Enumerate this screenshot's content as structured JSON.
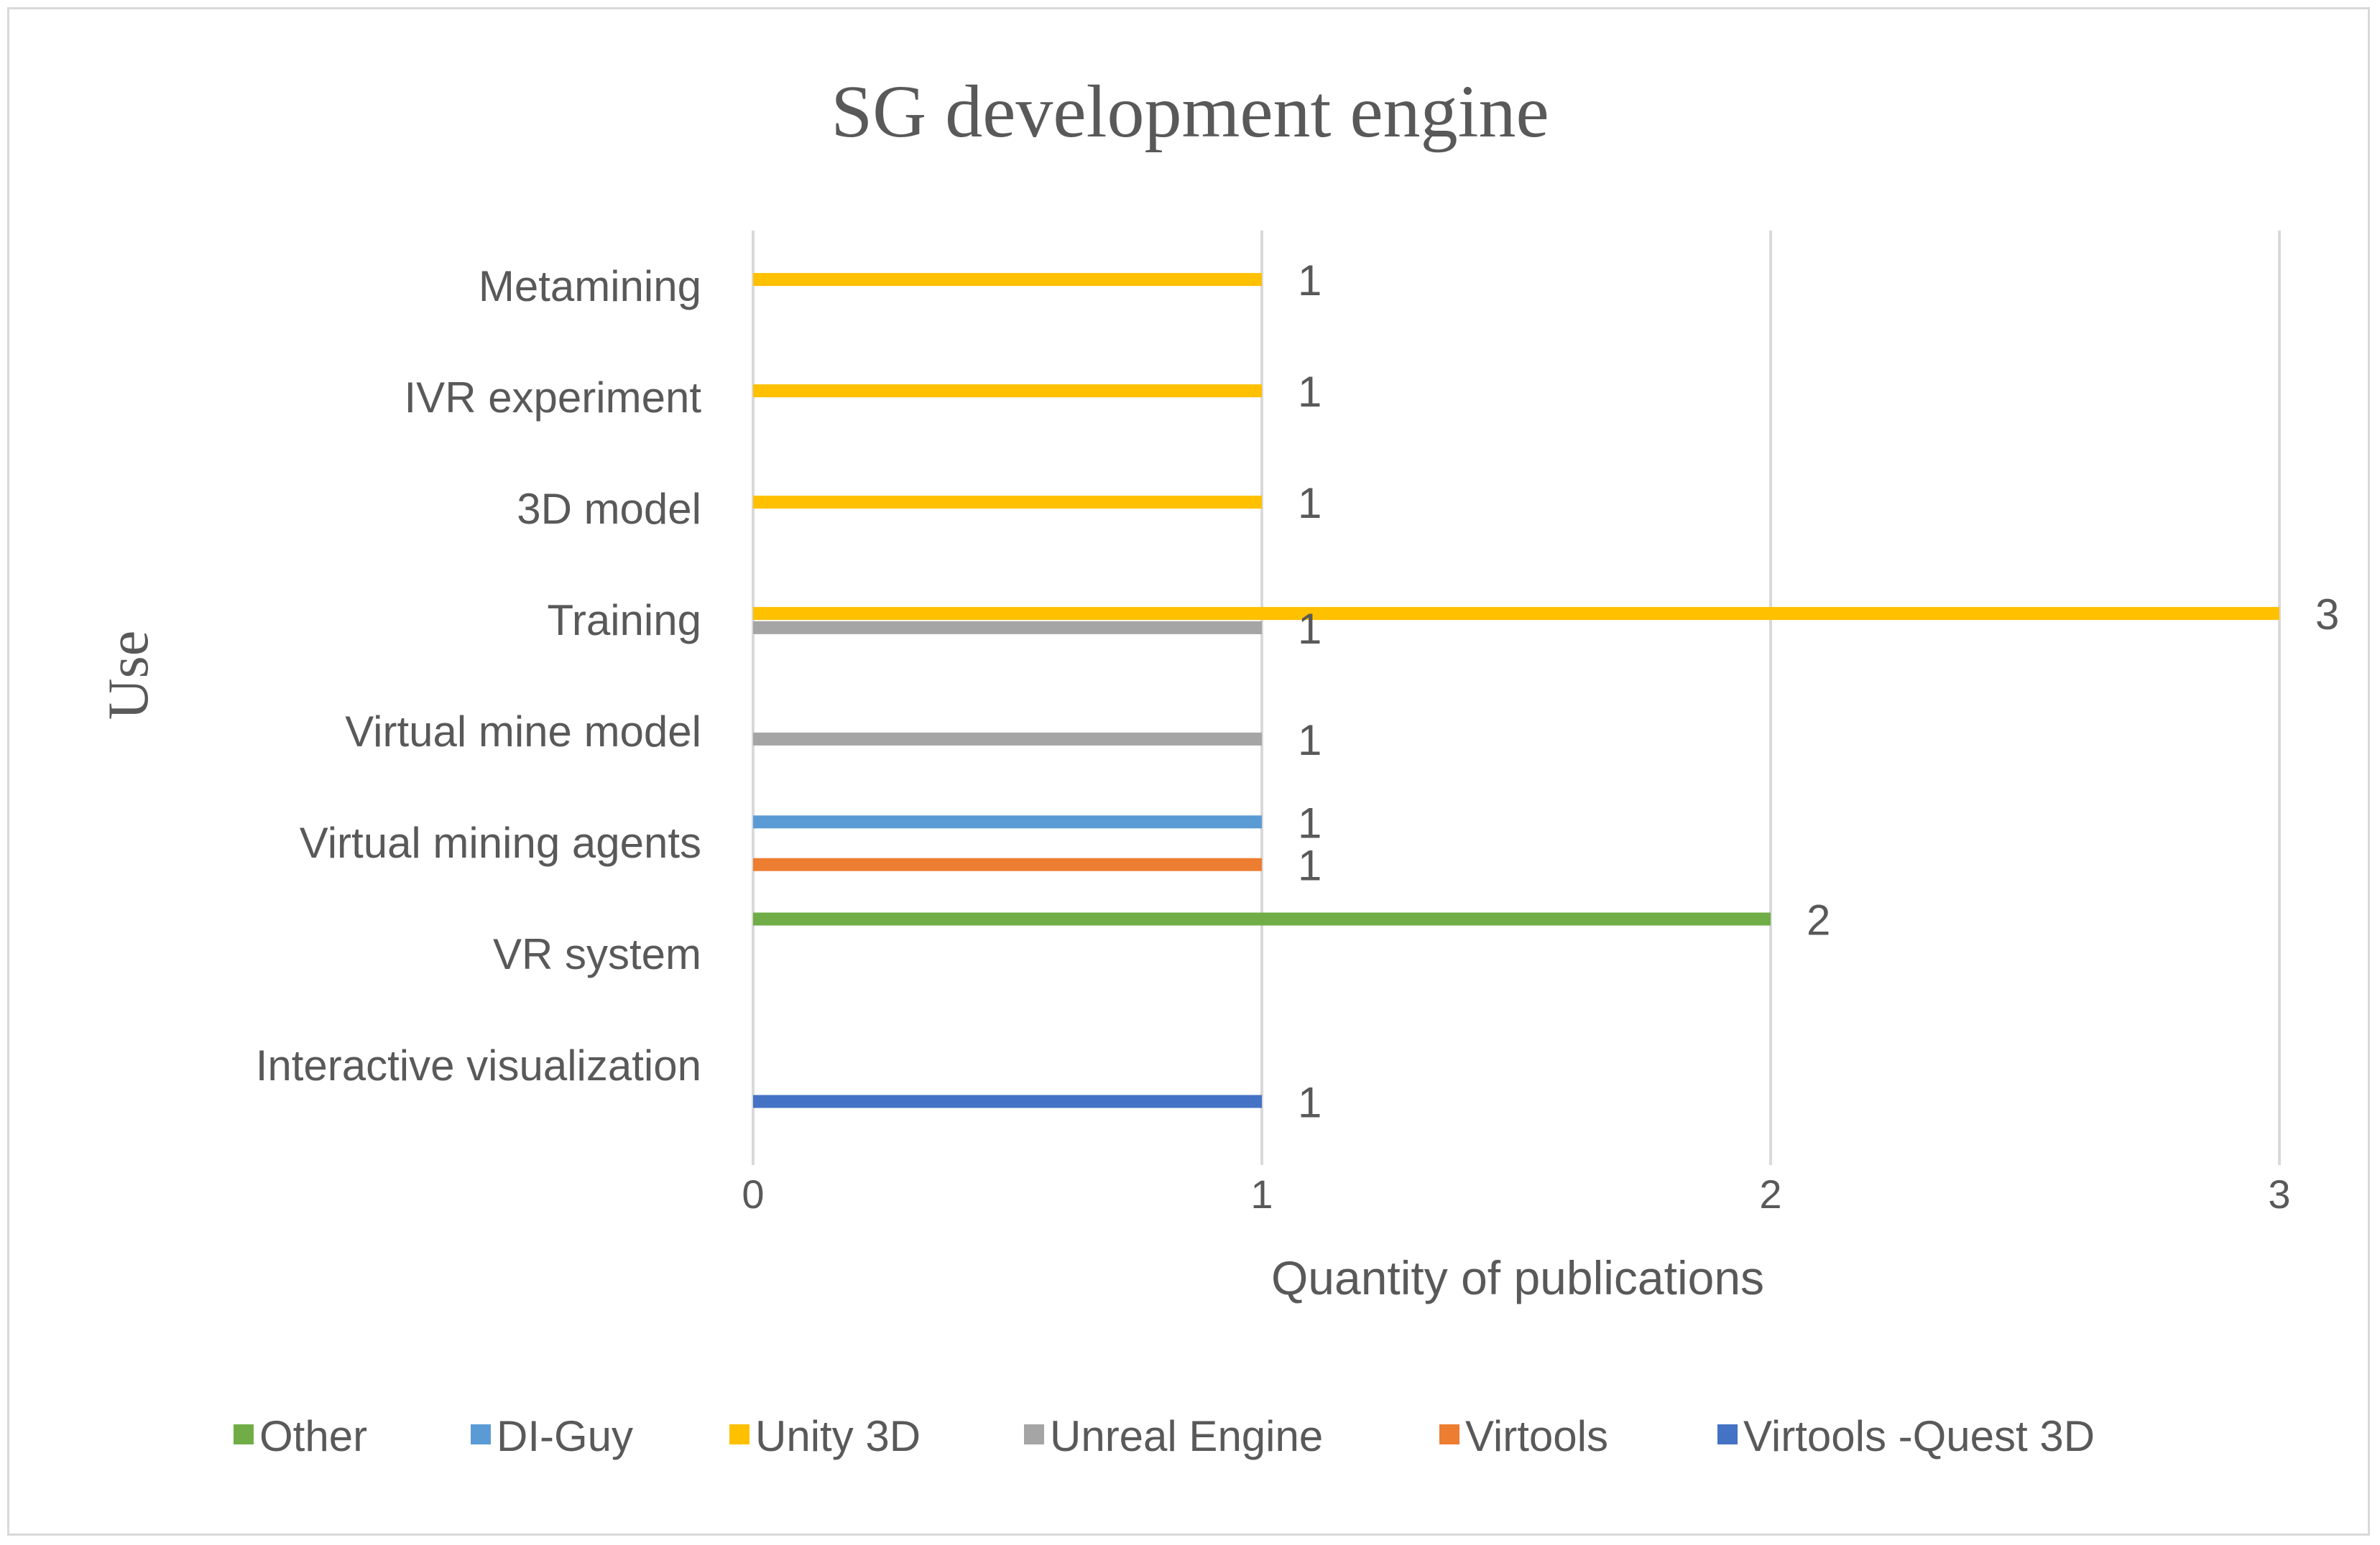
{
  "chart_data": {
    "type": "bar",
    "orientation": "horizontal",
    "title": "SG development engine",
    "xlabel": "Quantity of publications",
    "ylabel": "Use",
    "xlim": [
      0,
      3
    ],
    "xticks": [
      "0",
      "1",
      "2",
      "3"
    ],
    "grid": true,
    "legend_position": "bottom",
    "categories": [
      "Metamining",
      "IVR experiment",
      "3D model",
      "Training",
      "Virtual mine model",
      "Virtual mining agents",
      "VR system",
      "Interactive visualization"
    ],
    "series": [
      {
        "name": "Other",
        "color": "#70AD47",
        "values": [
          null,
          null,
          null,
          null,
          null,
          null,
          2,
          null
        ]
      },
      {
        "name": "DI-Guy",
        "color": "#5B9BD5",
        "values": [
          null,
          null,
          null,
          null,
          null,
          1,
          null,
          null
        ]
      },
      {
        "name": "Unity 3D",
        "color": "#FFC000",
        "values": [
          1,
          1,
          1,
          3,
          null,
          null,
          null,
          null
        ]
      },
      {
        "name": "Unreal Engine",
        "color": "#A5A5A5",
        "values": [
          null,
          null,
          null,
          1,
          1,
          null,
          null,
          null
        ]
      },
      {
        "name": "Virtools",
        "color": "#ED7D31",
        "values": [
          null,
          null,
          null,
          null,
          null,
          1,
          null,
          null
        ]
      },
      {
        "name": "Virtools -Quest 3D",
        "color": "#4472C4",
        "values": [
          null,
          null,
          null,
          null,
          null,
          null,
          null,
          1
        ]
      }
    ]
  }
}
